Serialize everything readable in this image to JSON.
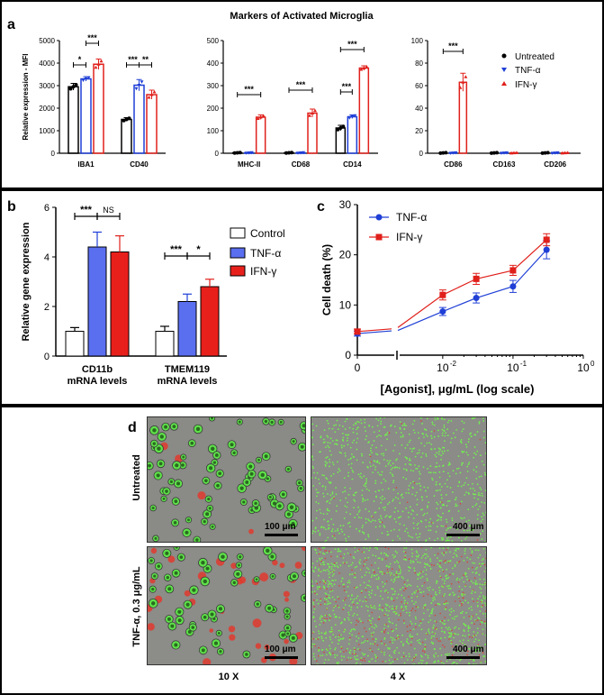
{
  "panel_a": {
    "letter": "a",
    "title": "Markers of Activated Microglia",
    "legend": [
      "Untreated",
      "TNF-α",
      "IFN-γ"
    ],
    "colors": {
      "untreated": "#000000",
      "tnf": "#1f3fd6",
      "ifn": "#e0201b"
    }
  },
  "panel_b": {
    "letter": "b"
  },
  "panel_c": {
    "letter": "c"
  },
  "panel_d": {
    "letter": "d",
    "row_labels": [
      "Untreated",
      "TNF-α, 0.3 μg/mL"
    ],
    "col_labels": [
      "10 X",
      "4 X"
    ],
    "scale_labels": [
      "100 μm",
      "400 μm",
      "100 μm",
      "400 μm"
    ]
  },
  "chart_data": [
    {
      "type": "bar",
      "panel": "a1",
      "ylabel": "Relative expression - MFI",
      "ylim": [
        0,
        5000
      ],
      "yticks": [
        0,
        1000,
        2000,
        3000,
        4000,
        5000
      ],
      "categories": [
        "IBA1",
        "CD40"
      ],
      "series": [
        {
          "name": "Untreated",
          "values": [
            2950,
            1500
          ]
        },
        {
          "name": "TNF-α",
          "values": [
            3300,
            3020
          ]
        },
        {
          "name": "IFN-γ",
          "values": [
            3950,
            2600
          ]
        }
      ],
      "errors": [
        [
          150,
          80
        ],
        [
          100,
          250
        ],
        [
          230,
          200
        ]
      ],
      "significance": [
        {
          "cat": 0,
          "from": 0,
          "to": 1,
          "label": "*"
        },
        {
          "cat": 0,
          "from": 1,
          "to": 2,
          "label": "***"
        },
        {
          "cat": 1,
          "from": 0,
          "to": 1,
          "label": "***"
        },
        {
          "cat": 1,
          "from": 1,
          "to": 2,
          "label": "**"
        }
      ]
    },
    {
      "type": "bar",
      "panel": "a2",
      "ylim": [
        0,
        500
      ],
      "yticks": [
        0,
        100,
        200,
        300,
        400,
        500
      ],
      "categories": [
        "MHC-II",
        "CD68",
        "CD14"
      ],
      "series": [
        {
          "name": "Untreated",
          "values": [
            2,
            2,
            112
          ]
        },
        {
          "name": "TNF-α",
          "values": [
            2,
            2,
            162
          ]
        },
        {
          "name": "IFN-γ",
          "values": [
            160,
            178,
            378
          ]
        }
      ],
      "errors": [
        [
          2,
          2,
          12
        ],
        [
          2,
          2,
          8
        ],
        [
          10,
          18,
          10
        ]
      ],
      "significance": [
        {
          "cat": 0,
          "from": 0,
          "to": 2,
          "label": "***"
        },
        {
          "cat": 1,
          "from": 0,
          "to": 2,
          "label": "***"
        },
        {
          "cat": 2,
          "from": 0,
          "to": 1,
          "label": "***"
        },
        {
          "cat": 2,
          "from": 0,
          "to": 2,
          "label": "***"
        }
      ]
    },
    {
      "type": "bar",
      "panel": "a3",
      "ylim": [
        0,
        100
      ],
      "yticks": [
        0,
        20,
        40,
        60,
        80,
        100
      ],
      "categories": [
        "CD86",
        "CD163",
        "CD206"
      ],
      "series": [
        {
          "name": "Untreated",
          "values": [
            0.3,
            0.3,
            0.3
          ]
        },
        {
          "name": "TNF-α",
          "values": [
            0.3,
            0.3,
            0.3
          ]
        },
        {
          "name": "IFN-γ",
          "values": [
            63,
            0.3,
            0.3
          ]
        }
      ],
      "errors": [
        [
          0.3,
          0.3,
          0.3
        ],
        [
          0.3,
          0.3,
          0.3
        ],
        [
          8,
          0.3,
          0.3
        ]
      ],
      "significance": [
        {
          "cat": 0,
          "from": 0,
          "to": 2,
          "label": "***"
        }
      ]
    },
    {
      "type": "bar",
      "panel": "b",
      "ylabel": "Relative gene expression",
      "ylim": [
        0,
        6
      ],
      "yticks": [
        0,
        2,
        4,
        6
      ],
      "categories": [
        "CD11b\nmRNA levels",
        "TMEM119\nmRNA levels"
      ],
      "series": [
        {
          "name": "Control",
          "values": [
            1.0,
            1.0
          ]
        },
        {
          "name": "TNF-α",
          "values": [
            4.4,
            2.2
          ]
        },
        {
          "name": "IFN-γ",
          "values": [
            4.2,
            2.8
          ]
        }
      ],
      "errors": [
        [
          0.15,
          0.2
        ],
        [
          0.6,
          0.3
        ],
        [
          0.65,
          0.3
        ]
      ],
      "significance": [
        {
          "cat": 0,
          "from": 0,
          "to": 1,
          "label": "***"
        },
        {
          "cat": 0,
          "from": 1,
          "to": 2,
          "label": "NS"
        },
        {
          "cat": 1,
          "from": 0,
          "to": 1,
          "label": "***"
        },
        {
          "cat": 1,
          "from": 1,
          "to": 2,
          "label": "*"
        }
      ]
    },
    {
      "type": "line",
      "panel": "c",
      "xlabel": "[Agonist], μg/mL (log scale)",
      "ylabel": "Cell death (%)",
      "ylim": [
        0,
        30
      ],
      "yticks": [
        0,
        10,
        20,
        30
      ],
      "xscale": "log",
      "xtick_labels": [
        "0",
        "10",
        "10",
        "10"
      ],
      "xtick_exponents": [
        "",
        "-2",
        "-1",
        "0"
      ],
      "series": [
        {
          "name": "TNF-α",
          "x": [
            0,
            0.01,
            0.03,
            0.1,
            0.3
          ],
          "y": [
            4.3,
            8.7,
            11.4,
            13.7,
            21.0
          ],
          "err": [
            0.5,
            0.8,
            1.0,
            1.2,
            1.8
          ]
        },
        {
          "name": "IFN-γ",
          "x": [
            0,
            0.01,
            0.03,
            0.1,
            0.3
          ],
          "y": [
            4.7,
            12.0,
            15.2,
            16.9,
            23.0
          ],
          "err": [
            0.5,
            1.0,
            1.1,
            1.0,
            1.2
          ]
        }
      ]
    }
  ]
}
